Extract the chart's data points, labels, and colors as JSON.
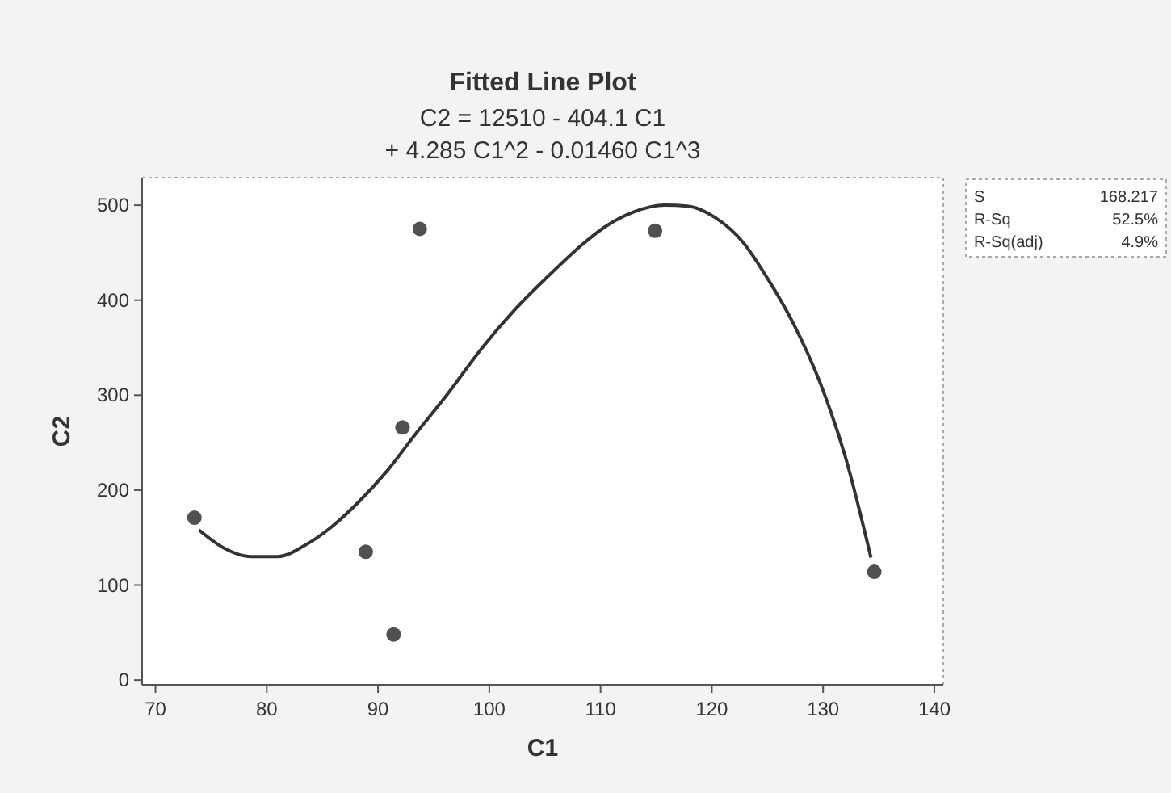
{
  "chart_data": {
    "type": "scatter",
    "title": "Fitted Line Plot",
    "subtitle": "C2 = 12510 - 404.1 C1\n+ 4.285 C1^2 - 0.01460 C1^3",
    "xlabel": "C1",
    "ylabel": "C2",
    "annotations": [
      "S",
      "168.217",
      "R-Sq",
      "52.5%",
      "R-Sq(adj)",
      "4.9%"
    ],
    "xlim": [
      68.8,
      140.8
    ],
    "xticks": [
      70,
      80,
      90,
      100,
      110,
      120,
      130,
      140
    ],
    "ylim": [
      -5,
      529
    ],
    "yticks": [
      0,
      100,
      200,
      300,
      400,
      500
    ],
    "grid": false,
    "series": [
      {
        "color": "#505050",
        "marker": "circle",
        "x": [
          73.5,
          88.9,
          91.4,
          92.2,
          93.75,
          114.9,
          134.6
        ],
        "values": [
          171,
          135,
          48,
          266,
          475,
          473,
          114
        ]
      },
      {
        "type": "line",
        "color": "#333333",
        "marker": "none",
        "line_style": "solid",
        "x": [
          73.9,
          76.3,
          78.5,
          81,
          83.3,
          85.8,
          88.3,
          90.8,
          93.3,
          96.3,
          99.3,
          102.3,
          105.8,
          108.3,
          110.5,
          113,
          115.8,
          117.8,
          120.3,
          122.8,
          125,
          127.3,
          129.8,
          132,
          134.3
        ],
        "values": [
          158,
          138,
          130,
          130,
          141,
          161,
          188,
          220,
          258,
          302,
          349,
          390,
          431,
          458,
          478,
          493,
          500,
          499,
          487,
          461,
          423,
          376,
          311,
          235,
          129
        ]
      }
    ]
  }
}
